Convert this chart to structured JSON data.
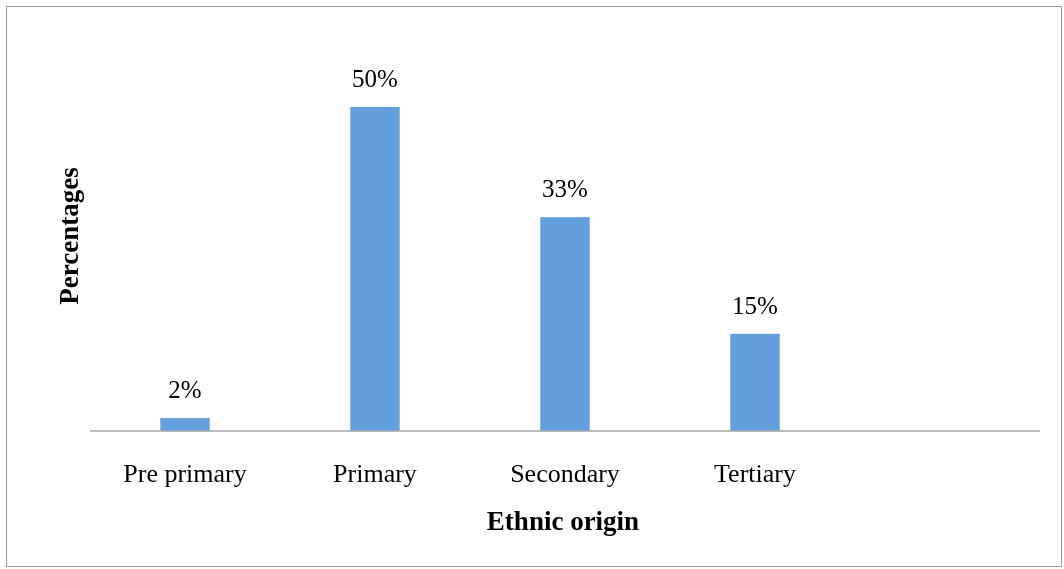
{
  "chart_data": {
    "type": "bar",
    "xlabel": "Ethnic origin",
    "ylabel": "Percentages",
    "categories": [
      "Pre primary",
      "Primary",
      "Secondary",
      "Tertiary",
      null
    ],
    "values": [
      2,
      50,
      33,
      15,
      null
    ],
    "value_labels": [
      "2%",
      "50%",
      "33%",
      "15%",
      null
    ],
    "color": "#629fdc"
  }
}
